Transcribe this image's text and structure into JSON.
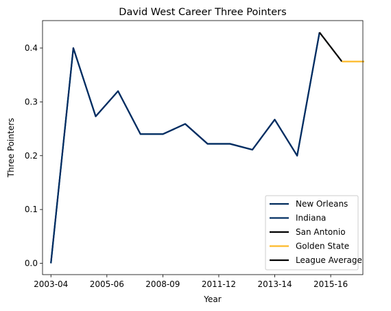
{
  "chart_data": {
    "type": "line",
    "title": "David West  Career Three Pointers",
    "xlabel": "Year",
    "ylabel": "Three Pointers",
    "xticks": [
      "2003-04",
      "2005-06",
      "2008-09",
      "2011-12",
      "2013-14",
      "2015-16"
    ],
    "xtick_positions": [
      0,
      2,
      4,
      6,
      8,
      10
    ],
    "xlim": [
      -0.3,
      11.15
    ],
    "yticks": [
      "0.0",
      "0.1",
      "0.2",
      "0.3",
      "0.4"
    ],
    "ytick_values": [
      0.0,
      0.1,
      0.2,
      0.3,
      0.4
    ],
    "ylim": [
      -0.021,
      0.451
    ],
    "grid": false,
    "legend_position": "lower right",
    "series": [
      {
        "name": "New Orleans",
        "color": "#002B5C",
        "x": [
          0,
          0.8,
          1.6,
          2.4,
          3.2,
          4.0,
          4.8,
          5.6,
          6.4,
          7.2,
          8.0,
          8.8,
          9.6
        ],
        "y": [
          0.0,
          0.4,
          0.273,
          0.32,
          0.24,
          0.24,
          0.259,
          0.222,
          0.222,
          0.211,
          0.267,
          0.2,
          0.429
        ]
      },
      {
        "name": "Indiana",
        "color": "#002D62",
        "x": [
          0,
          0.8,
          1.6,
          2.4,
          3.2,
          4.0,
          4.8,
          5.6,
          6.4,
          7.2,
          8.0,
          8.8,
          9.6
        ],
        "y": [
          0.0,
          0.4,
          0.273,
          0.32,
          0.24,
          0.24,
          0.259,
          0.222,
          0.222,
          0.211,
          0.267,
          0.2,
          0.429
        ]
      },
      {
        "name": "San Antonio",
        "color": "#000000",
        "x": [
          9.6,
          10.4
        ],
        "y": [
          0.429,
          0.375
        ]
      },
      {
        "name": "Golden State",
        "color": "#FDB927",
        "x": [
          10.4,
          11.2
        ],
        "y": [
          0.375,
          0.375
        ]
      },
      {
        "name": "League Average",
        "color": "#000000",
        "x": [],
        "y": []
      }
    ]
  }
}
